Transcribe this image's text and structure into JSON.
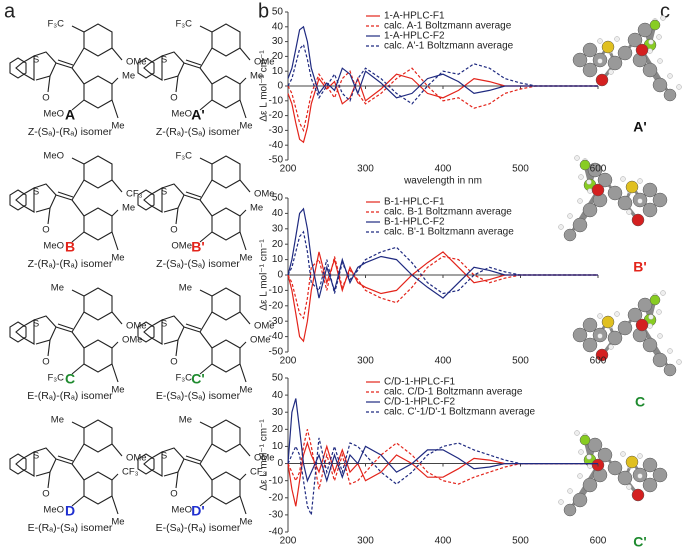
{
  "panel_a": {
    "label": "a",
    "structures": [
      {
        "label": "A",
        "color": "#111111",
        "caption": "Z-(Sₐ)-(Rₐ) isomer",
        "atoms": [
          "S",
          "O",
          "F₃C",
          "OMe",
          "MeO",
          "Me",
          "Me"
        ]
      },
      {
        "label": "A'",
        "color": "#111111",
        "caption": "Z-(Rₐ)-(Sₐ) isomer",
        "atoms": [
          "S",
          "O",
          "F₃C",
          "OMe",
          "MeO",
          "Me",
          "Me"
        ]
      },
      {
        "label": "B",
        "color": "#e3241b",
        "caption": "Z-(Rₐ)-(Rₐ) isomer",
        "atoms": [
          "S",
          "O",
          "MeO",
          "CF₃",
          "MeO",
          "Me",
          "Me"
        ]
      },
      {
        "label": "B'",
        "color": "#e3241b",
        "caption": "Z-(Sₐ)-(Sₐ) isomer",
        "atoms": [
          "S",
          "O",
          "F₃C",
          "OMe",
          "OMe",
          "Me",
          "Me"
        ]
      },
      {
        "label": "C",
        "color": "#1e8a2e",
        "caption": "E-(Rₐ)-(Rₐ) isomer",
        "atoms": [
          "S",
          "O",
          "Me",
          "OMe",
          "F₃C",
          "OMe",
          "Me"
        ]
      },
      {
        "label": "C'",
        "color": "#1e8a2e",
        "caption": "E-(Sₐ)-(Sₐ) isomer",
        "atoms": [
          "S",
          "O",
          "Me",
          "OMe",
          "F₃C",
          "OMe",
          "Me"
        ]
      },
      {
        "label": "D",
        "color": "#1f2fd0",
        "caption": "E-(Rₐ)-(Sₐ) isomer",
        "atoms": [
          "S",
          "O",
          "Me",
          "OMe",
          "MeO",
          "CF₃",
          "Me"
        ]
      },
      {
        "label": "D'",
        "color": "#1f2fd0",
        "caption": "E-(Sₐ)-(Rₐ) isomer",
        "atoms": [
          "S",
          "O",
          "Me",
          "OMe",
          "MeO",
          "CF₃",
          "Me"
        ]
      }
    ]
  },
  "panel_b_label": "b",
  "panel_c": {
    "label": "c",
    "models": [
      {
        "label": "A'",
        "color": "#111111"
      },
      {
        "label": "B'",
        "color": "#e3241b"
      },
      {
        "label": "C",
        "color": "#1e8a2e"
      },
      {
        "label": "C'",
        "color": "#1e8a2e"
      }
    ]
  },
  "chart_data": [
    {
      "type": "line",
      "y_label": "Δε  L mol⁻¹ cm⁻¹",
      "x_label": "wavelength in nm",
      "x": [
        200,
        205,
        210,
        215,
        220,
        225,
        230,
        240,
        250,
        260,
        270,
        280,
        290,
        300,
        320,
        340,
        360,
        380,
        400,
        420,
        440,
        460,
        480,
        500,
        520,
        540,
        560,
        580,
        600
      ],
      "xlim": [
        200,
        600
      ],
      "xticks": [
        200,
        300,
        400,
        500,
        600
      ],
      "ylim": [
        -50,
        50
      ],
      "yticks": [
        -50,
        -40,
        -30,
        -20,
        -10,
        0,
        10,
        20,
        30,
        40,
        50
      ],
      "series": [
        {
          "name": "1-A-HPLC-F1",
          "color": "#e3241b",
          "dashed": false,
          "values": [
            -5,
            -12,
            -25,
            -36,
            -38,
            -28,
            -12,
            5,
            -2,
            3,
            -12,
            -8,
            5,
            -10,
            -2,
            8,
            5,
            -5,
            -8,
            -3,
            5,
            3,
            0,
            0,
            0,
            0,
            0,
            0,
            0
          ]
        },
        {
          "name": "calc. A-1 Boltzmann average",
          "color": "#e3241b",
          "dashed": true,
          "values": [
            0,
            -5,
            -15,
            -25,
            -30,
            -18,
            -5,
            8,
            0,
            -8,
            5,
            10,
            -5,
            -12,
            -5,
            5,
            12,
            0,
            -10,
            -8,
            -15,
            -12,
            -5,
            -2,
            0,
            0,
            0,
            0,
            0
          ]
        },
        {
          "name": "1-A-HPLC-F2",
          "color": "#1f2a80",
          "dashed": false,
          "values": [
            5,
            12,
            25,
            38,
            40,
            30,
            12,
            -5,
            2,
            -3,
            12,
            8,
            -5,
            10,
            2,
            -8,
            -5,
            5,
            8,
            3,
            -5,
            -3,
            0,
            0,
            0,
            0,
            0,
            0,
            0
          ]
        },
        {
          "name": "calc. A'-1 Boltzmann average",
          "color": "#1f2a80",
          "dashed": true,
          "values": [
            0,
            5,
            15,
            25,
            28,
            18,
            5,
            -8,
            0,
            8,
            -5,
            -10,
            5,
            12,
            5,
            -5,
            -12,
            0,
            10,
            8,
            15,
            12,
            5,
            2,
            0,
            0,
            0,
            0,
            0
          ]
        }
      ]
    },
    {
      "type": "line",
      "y_label": "Δε  L mol⁻¹ cm⁻¹",
      "x": [
        200,
        205,
        210,
        215,
        220,
        225,
        230,
        240,
        250,
        260,
        270,
        280,
        290,
        300,
        320,
        340,
        360,
        380,
        400,
        420,
        440,
        460,
        480,
        500,
        520,
        540,
        560,
        580,
        600
      ],
      "xlim": [
        200,
        600
      ],
      "xticks": [
        200,
        300,
        400,
        500,
        600
      ],
      "ylim": [
        -50,
        50
      ],
      "yticks": [
        -50,
        -40,
        -30,
        -20,
        -10,
        0,
        10,
        20,
        30,
        40,
        50
      ],
      "series": [
        {
          "name": "B-1-HPLC-F1",
          "color": "#e3241b",
          "dashed": false,
          "values": [
            0,
            -10,
            -25,
            -40,
            -43,
            -30,
            -10,
            15,
            -5,
            10,
            -10,
            5,
            -5,
            -8,
            -12,
            -10,
            0,
            8,
            15,
            5,
            -5,
            -3,
            0,
            0,
            0,
            0,
            0,
            0,
            0
          ]
        },
        {
          "name": "calc. B-1 Boltzmann average",
          "color": "#e3241b",
          "dashed": true,
          "values": [
            0,
            -5,
            -15,
            -25,
            -28,
            -15,
            5,
            10,
            -10,
            12,
            -8,
            3,
            -3,
            -10,
            -15,
            -18,
            -8,
            5,
            12,
            10,
            0,
            -5,
            -2,
            0,
            0,
            0,
            0,
            0,
            0
          ]
        },
        {
          "name": "B-1-HPLC-F2",
          "color": "#1f2a80",
          "dashed": false,
          "values": [
            0,
            10,
            25,
            40,
            43,
            30,
            10,
            -15,
            5,
            -10,
            10,
            -5,
            5,
            8,
            12,
            10,
            0,
            -8,
            -15,
            -5,
            5,
            3,
            0,
            0,
            0,
            0,
            0,
            0,
            0
          ]
        },
        {
          "name": "calc. B'-1 Boltzmann average",
          "color": "#1f2a80",
          "dashed": true,
          "values": [
            0,
            5,
            15,
            25,
            28,
            15,
            -5,
            -10,
            10,
            -12,
            8,
            -3,
            3,
            10,
            15,
            18,
            8,
            -5,
            -12,
            -10,
            0,
            5,
            2,
            0,
            0,
            0,
            0,
            0,
            0
          ]
        }
      ]
    },
    {
      "type": "line",
      "y_label": "Δε  L mol⁻¹ cm⁻¹",
      "x": [
        200,
        205,
        210,
        215,
        220,
        225,
        230,
        240,
        250,
        260,
        270,
        280,
        290,
        300,
        320,
        340,
        360,
        380,
        400,
        420,
        440,
        460,
        480,
        500,
        520,
        540,
        560,
        580,
        600
      ],
      "xlim": [
        200,
        600
      ],
      "xticks": [
        200,
        300,
        400,
        500,
        600
      ],
      "ylim": [
        -40,
        50
      ],
      "yticks": [
        -40,
        -30,
        -20,
        -10,
        0,
        10,
        20,
        30,
        40,
        50
      ],
      "series": [
        {
          "name": "C/D-1-HPLC-F1",
          "color": "#e3241b",
          "dashed": false,
          "values": [
            0,
            -15,
            -25,
            -10,
            5,
            12,
            5,
            -5,
            10,
            -5,
            8,
            -5,
            0,
            -10,
            -5,
            5,
            0,
            -8,
            -8,
            -3,
            3,
            2,
            0,
            0,
            0,
            0,
            0,
            0,
            0
          ]
        },
        {
          "name": "calc. C/D-1 Boltzmann average",
          "color": "#e3241b",
          "dashed": true,
          "values": [
            0,
            -5,
            -10,
            -5,
            10,
            20,
            10,
            -15,
            5,
            -10,
            5,
            -12,
            -10,
            -5,
            5,
            12,
            5,
            -5,
            -10,
            -12,
            -8,
            -5,
            -2,
            0,
            0,
            0,
            0,
            0,
            0
          ]
        },
        {
          "name": "C/D-1-HPLC-F2",
          "color": "#1f2a80",
          "dashed": false,
          "values": [
            0,
            30,
            38,
            20,
            0,
            -10,
            -5,
            5,
            -10,
            5,
            -8,
            5,
            0,
            10,
            5,
            -5,
            0,
            8,
            8,
            3,
            -3,
            -2,
            0,
            0,
            0,
            0,
            0,
            0,
            0
          ]
        },
        {
          "name": "calc. C'-1/D'-1 Boltzmann average",
          "color": "#1f2a80",
          "dashed": true,
          "values": [
            0,
            5,
            10,
            5,
            -10,
            -25,
            -30,
            15,
            -5,
            10,
            -5,
            12,
            10,
            5,
            -5,
            -12,
            -5,
            5,
            10,
            12,
            8,
            5,
            2,
            0,
            0,
            0,
            0,
            0,
            0
          ]
        }
      ]
    }
  ]
}
